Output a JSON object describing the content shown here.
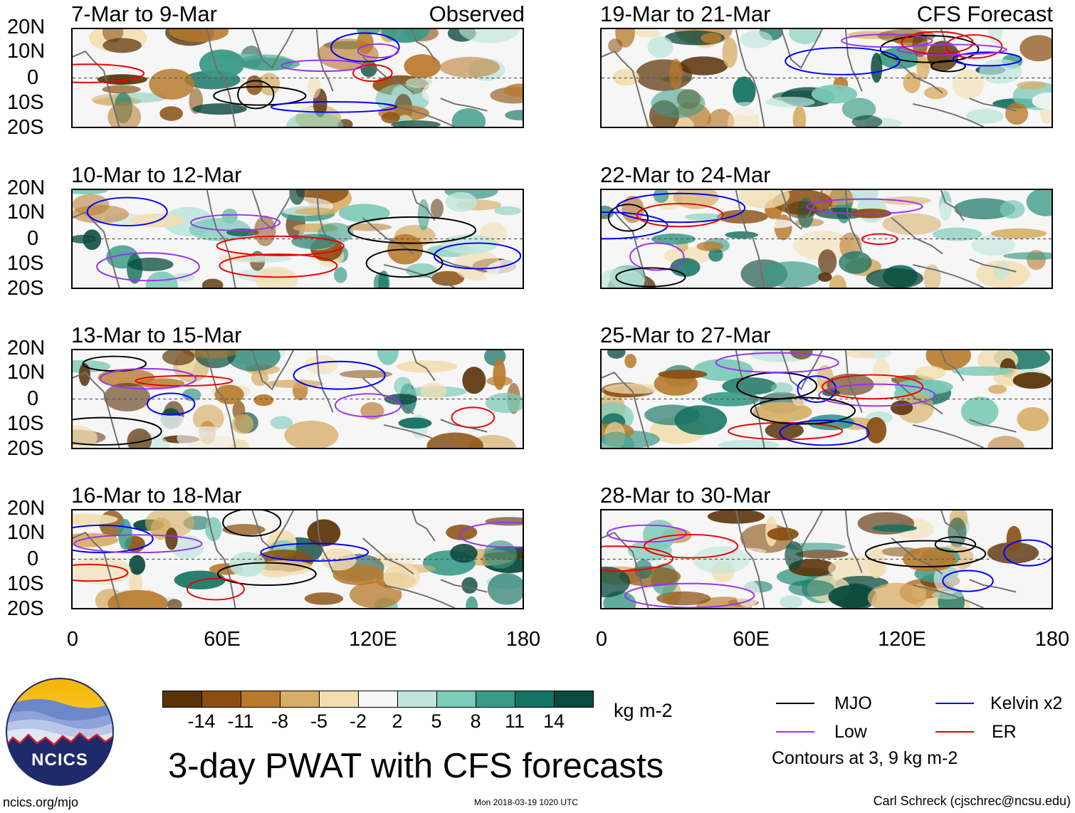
{
  "panels": {
    "p1": {
      "title": "7-Mar to 9-Mar",
      "tag": "Observed"
    },
    "p2": {
      "title": "10-Mar to 12-Mar"
    },
    "p3": {
      "title": "13-Mar to 15-Mar"
    },
    "p4": {
      "title": "16-Mar to 18-Mar"
    },
    "p5": {
      "title": "19-Mar to 21-Mar",
      "tag": "CFS Forecast"
    },
    "p6": {
      "title": "22-Mar to 24-Mar"
    },
    "p7": {
      "title": "25-Mar to 27-Mar"
    },
    "p8": {
      "title": "28-Mar to 30-Mar"
    }
  },
  "axes": {
    "lat": [
      "20N",
      "10N",
      "0",
      "10S",
      "20S"
    ],
    "lon": [
      "0",
      "60E",
      "120E",
      "180"
    ]
  },
  "colorbar": {
    "labels": [
      "-14",
      "-11",
      "-8",
      "-5",
      "-2",
      "2",
      "5",
      "8",
      "11",
      "14"
    ],
    "colors": [
      "#5a3208",
      "#8a4f10",
      "#b87a2c",
      "#d7ae67",
      "#f2deb0",
      "#f6f6f6",
      "#bfe5dc",
      "#7ccab8",
      "#399a86",
      "#137262",
      "#0b4a3e"
    ],
    "units": "kg m-2"
  },
  "legend": {
    "mjo": {
      "label": "MJO",
      "color": "#000000"
    },
    "kelvin": {
      "label": "Kelvin x2",
      "color": "#0000ff"
    },
    "low": {
      "label": "Low",
      "color": "#9933ee"
    },
    "er": {
      "label": "ER",
      "color": "#ee0000"
    },
    "contours": "Contours at 3, 9 kg m-2"
  },
  "title": "3-day PWAT with CFS forecasts",
  "logo": {
    "text": "NCICS"
  },
  "footer": {
    "url": "ncics.org/mjo",
    "timestamp": "Mon 2018-03-19 1020 UTC",
    "credit": "Carl Schreck (cjschrec@ncsu.edu)"
  }
}
